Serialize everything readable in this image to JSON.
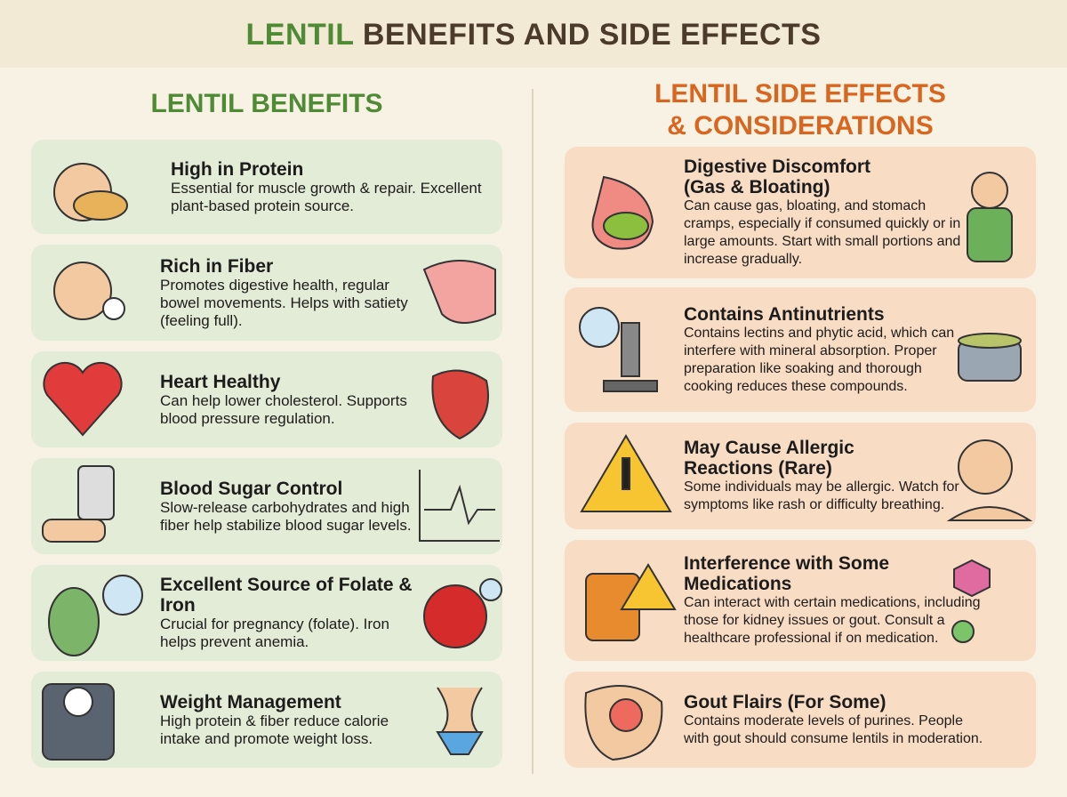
{
  "title": {
    "highlight": "LENTIL",
    "rest": "BENEFITS AND SIDE EFFECTS"
  },
  "benefits": {
    "heading": "LENTIL BENEFITS",
    "items": [
      {
        "title": "High in Protein",
        "description": "Essential for muscle growth & repair. Excellent plant-based protein source."
      },
      {
        "title": "Rich in Fiber",
        "description": "Promotes digestive health, regular bowel movements. Helps with satiety (feeling full)."
      },
      {
        "title": "Heart Healthy",
        "description": "Can help lower cholesterol. Supports blood pressure regulation."
      },
      {
        "title": "Blood Sugar Control",
        "description": "Slow-release carbohydrates and high fiber help stabilize blood sugar levels."
      },
      {
        "title": "Excellent Source of Folate & Iron",
        "description": "Crucial for pregnancy (folate). Iron helps prevent anemia."
      },
      {
        "title": "Weight Management",
        "description": "High protein & fiber reduce calorie intake and promote weight loss."
      }
    ]
  },
  "side_effects": {
    "heading_line1": "LENTIL SIDE EFFECTS",
    "heading_line2": "& CONSIDERATIONS",
    "items": [
      {
        "title": "Digestive Discomfort (Gas & Bloating)",
        "description": "Can cause gas, bloating, and stomach cramps, especially if consumed quickly or in large amounts. Start with small portions and increase gradually."
      },
      {
        "title": "Contains Antinutrients",
        "description": "Contains lectins and phytic acid, which can interfere with mineral absorption. Proper preparation like soaking and thorough cooking reduces these compounds."
      },
      {
        "title": "May Cause Allergic Reactions (Rare)",
        "description": "Some individuals may be allergic. Watch for symptoms like rash or difficulty breathing."
      },
      {
        "title": "Interference with Some Medications",
        "description": "Can interact with certain medications, including those for kidney issues or gout. Consult a healthcare professional if on medication."
      },
      {
        "title": "Gout Flairs (For Some)",
        "description": "Contains moderate levels of purines. People with gout should consume lentils in moderation."
      }
    ]
  }
}
